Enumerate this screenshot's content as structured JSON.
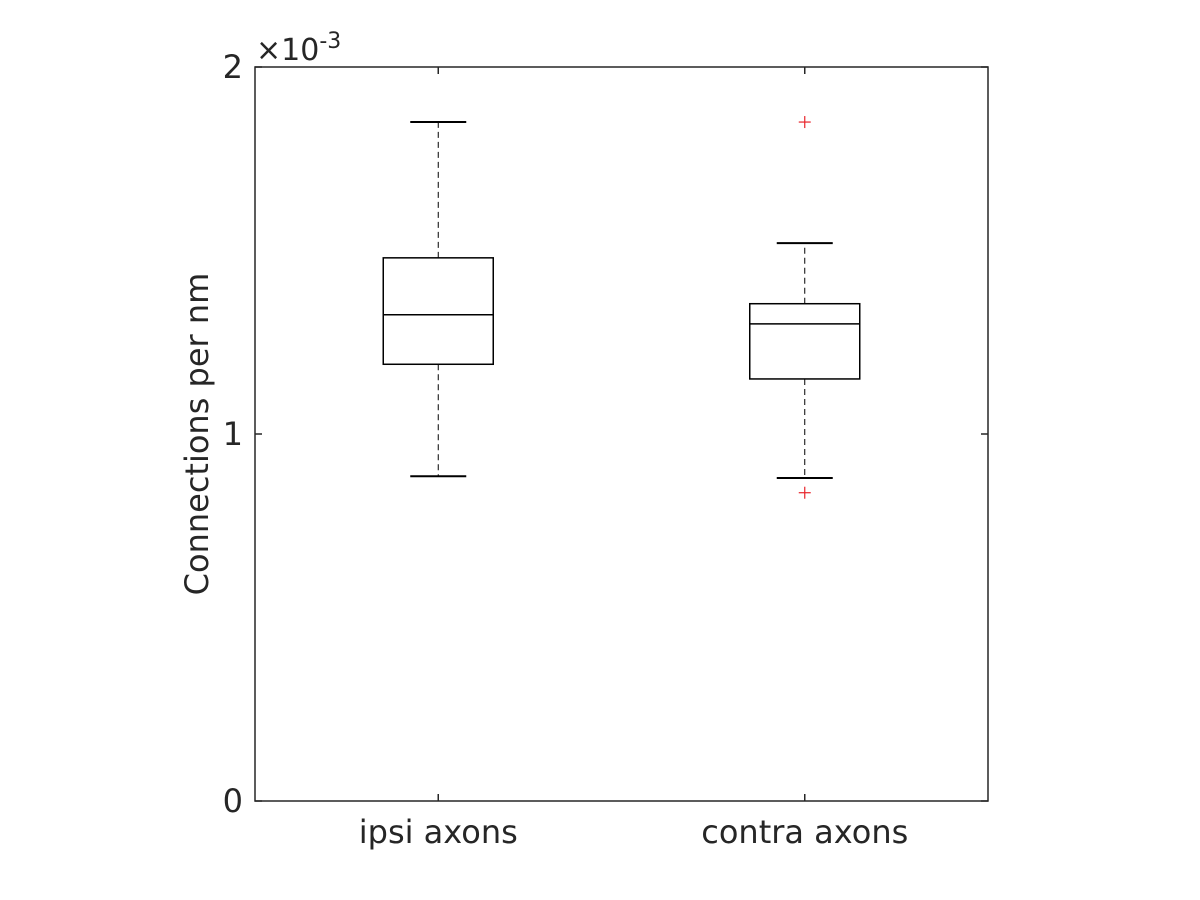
{
  "chart_data": {
    "type": "boxplot",
    "ylabel": "Connections per nm",
    "xlabel": "",
    "title": "",
    "y_exponent_label": "×10",
    "y_exponent_power": "-3",
    "ylim": [
      0,
      0.002
    ],
    "yticks": [
      0,
      0.001,
      0.002
    ],
    "ytick_labels": [
      "0",
      "1",
      "2"
    ],
    "categories": [
      "ipsi axons",
      "contra axons"
    ],
    "grid": false,
    "boxes": [
      {
        "name": "ipsi axons",
        "whisker_low": 0.000885,
        "q1": 0.00119,
        "median": 0.001325,
        "q3": 0.00148,
        "whisker_high": 0.00185,
        "outliers": []
      },
      {
        "name": "contra axons",
        "whisker_low": 0.00088,
        "q1": 0.00115,
        "median": 0.0013,
        "q3": 0.001355,
        "whisker_high": 0.00152,
        "outliers": [
          0.00185,
          0.00084
        ]
      }
    ],
    "colors": {
      "box": "#000000",
      "axis": "#262626",
      "outlier": "#e8232a"
    }
  }
}
